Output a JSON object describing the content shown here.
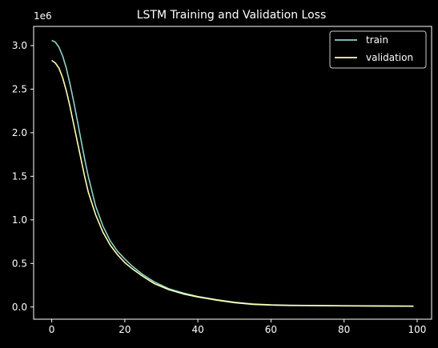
{
  "chart_data": {
    "type": "line",
    "title": "LSTM Training and Validation Loss",
    "xlabel": "",
    "ylabel": "",
    "y_offset_label": "1e6",
    "xlim": [
      -4.95,
      103.95
    ],
    "ylim": [
      -0.14,
      3.22
    ],
    "x_ticks": [
      0,
      20,
      40,
      60,
      80,
      100
    ],
    "x_tick_labels": [
      "0",
      "20",
      "40",
      "60",
      "80",
      "100"
    ],
    "y_ticks": [
      0.0,
      0.5,
      1.0,
      1.5,
      2.0,
      2.5,
      3.0
    ],
    "y_tick_labels": [
      "0.0",
      "0.5",
      "1.0",
      "1.5",
      "2.0",
      "2.5",
      "3.0"
    ],
    "grid": false,
    "legend_position": "upper right",
    "series": [
      {
        "name": "train",
        "color": "#8dd3c7",
        "x": [
          0,
          1,
          2,
          3,
          4,
          5,
          6,
          7,
          8,
          9,
          10,
          12,
          14,
          16,
          18,
          20,
          22,
          25,
          28,
          32,
          36,
          40,
          45,
          50,
          55,
          60,
          65,
          70,
          80,
          90,
          99
        ],
        "y": [
          3.06,
          3.04,
          2.98,
          2.88,
          2.74,
          2.56,
          2.36,
          2.14,
          1.92,
          1.7,
          1.5,
          1.16,
          0.93,
          0.76,
          0.64,
          0.55,
          0.47,
          0.37,
          0.29,
          0.21,
          0.16,
          0.12,
          0.085,
          0.055,
          0.035,
          0.025,
          0.02,
          0.018,
          0.015,
          0.012,
          0.01
        ]
      },
      {
        "name": "validation",
        "color": "#ffffb3",
        "x": [
          0,
          1,
          2,
          3,
          4,
          5,
          6,
          7,
          8,
          9,
          10,
          12,
          14,
          16,
          18,
          20,
          22,
          25,
          28,
          32,
          36,
          40,
          45,
          50,
          55,
          60,
          65,
          70,
          80,
          90,
          99
        ],
        "y": [
          2.83,
          2.8,
          2.74,
          2.63,
          2.48,
          2.3,
          2.1,
          1.9,
          1.7,
          1.5,
          1.32,
          1.06,
          0.86,
          0.71,
          0.6,
          0.51,
          0.44,
          0.35,
          0.27,
          0.2,
          0.15,
          0.115,
          0.08,
          0.05,
          0.03,
          0.022,
          0.018,
          0.016,
          0.013,
          0.011,
          0.009
        ]
      }
    ]
  }
}
